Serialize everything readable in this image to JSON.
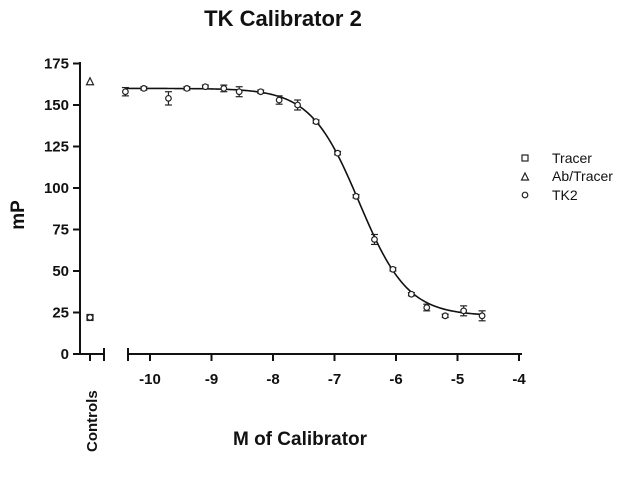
{
  "chart_data": {
    "type": "scatter",
    "title": "TK Calibrator 2",
    "xlabel": "M of Calibrator",
    "ylabel": "mP",
    "xlim": [
      -10.4,
      -4
    ],
    "ylim": [
      0,
      175
    ],
    "x_ticks": [
      -10,
      -9,
      -8,
      -7,
      -6,
      -5,
      -4
    ],
    "x_tick_labels": [
      "-10",
      "-9",
      "-8",
      "-7",
      "-6",
      "-5",
      "-4"
    ],
    "y_ticks": [
      0,
      25,
      50,
      75,
      100,
      125,
      150,
      175
    ],
    "y_tick_labels": [
      "0",
      "25",
      "50",
      "75",
      "100",
      "125",
      "150",
      "175"
    ],
    "controls_label": "Controls",
    "grid": false,
    "legend_position": "right",
    "controls": [
      {
        "series": "Tracer",
        "marker": "square",
        "value": 22
      },
      {
        "series": "Ab/Tracer",
        "marker": "triangle",
        "value": 164
      },
      {
        "series": "TK2",
        "marker": "circle",
        "value": 22
      }
    ],
    "series": [
      {
        "name": "Tracer",
        "marker": "square",
        "points": []
      },
      {
        "name": "Ab/Tracer",
        "marker": "triangle",
        "points": []
      },
      {
        "name": "TK2",
        "marker": "circle",
        "points": [
          {
            "x": -10.4,
            "y": 158,
            "err": 2.5
          },
          {
            "x": -10.1,
            "y": 160,
            "err": 1
          },
          {
            "x": -9.7,
            "y": 154,
            "err": 4
          },
          {
            "x": -9.4,
            "y": 160,
            "err": 1
          },
          {
            "x": -9.1,
            "y": 161,
            "err": 1
          },
          {
            "x": -8.8,
            "y": 160,
            "err": 2
          },
          {
            "x": -8.55,
            "y": 158,
            "err": 3
          },
          {
            "x": -8.2,
            "y": 158,
            "err": 1
          },
          {
            "x": -7.9,
            "y": 153,
            "err": 2.5
          },
          {
            "x": -7.6,
            "y": 150,
            "err": 3
          },
          {
            "x": -7.3,
            "y": 140,
            "err": 1
          },
          {
            "x": -6.95,
            "y": 121,
            "err": 1
          },
          {
            "x": -6.65,
            "y": 95,
            "err": 1
          },
          {
            "x": -6.35,
            "y": 69,
            "err": 3
          },
          {
            "x": -6.05,
            "y": 51,
            "err": 1
          },
          {
            "x": -5.75,
            "y": 36,
            "err": 1
          },
          {
            "x": -5.5,
            "y": 28,
            "err": 2
          },
          {
            "x": -5.2,
            "y": 23,
            "err": 1
          },
          {
            "x": -4.9,
            "y": 26,
            "err": 3
          },
          {
            "x": -4.6,
            "y": 23,
            "err": 3
          }
        ]
      }
    ],
    "fit": {
      "top": 160,
      "bottom": 23,
      "logEC50": -6.6,
      "hill": -1.1
    }
  }
}
